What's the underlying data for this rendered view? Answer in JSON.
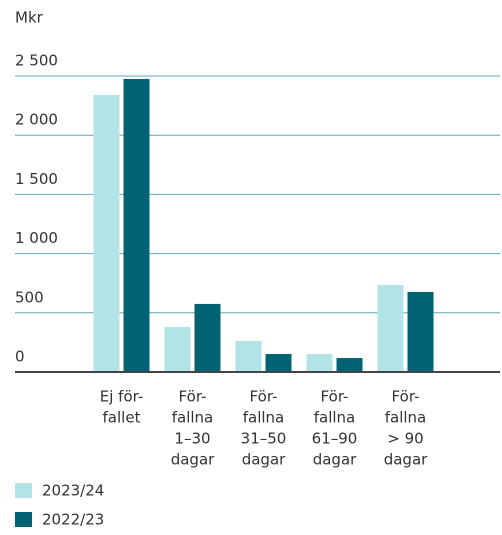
{
  "chart_data": {
    "type": "bar",
    "y_label": "Mkr",
    "categories": [
      [
        "Ej för-",
        "fallet"
      ],
      [
        "För-",
        "fallna",
        "1–30",
        "dagar"
      ],
      [
        "För-",
        "fallna",
        "31–50",
        "dagar"
      ],
      [
        "För-",
        "fallna",
        "61–90",
        "dagar"
      ],
      [
        "För-",
        "fallna",
        "> 90",
        "dagar"
      ]
    ],
    "series": [
      {
        "name": "2023/24",
        "color": "#b2e3e6",
        "values": [
          2340,
          380,
          262,
          152,
          735
        ]
      },
      {
        "name": "2022/23",
        "color": "#006272",
        "values": [
          2475,
          575,
          152,
          118,
          676
        ]
      }
    ],
    "ylim": [
      0,
      2500
    ],
    "yticks": [
      {
        "value": 0,
        "label": "0"
      },
      {
        "value": 500,
        "label": "500"
      },
      {
        "value": 1000,
        "label": "1 000"
      },
      {
        "value": 1500,
        "label": "1 500"
      },
      {
        "value": 2000,
        "label": "2 000"
      },
      {
        "value": 2500,
        "label": "2 500"
      }
    ],
    "grid": true
  }
}
